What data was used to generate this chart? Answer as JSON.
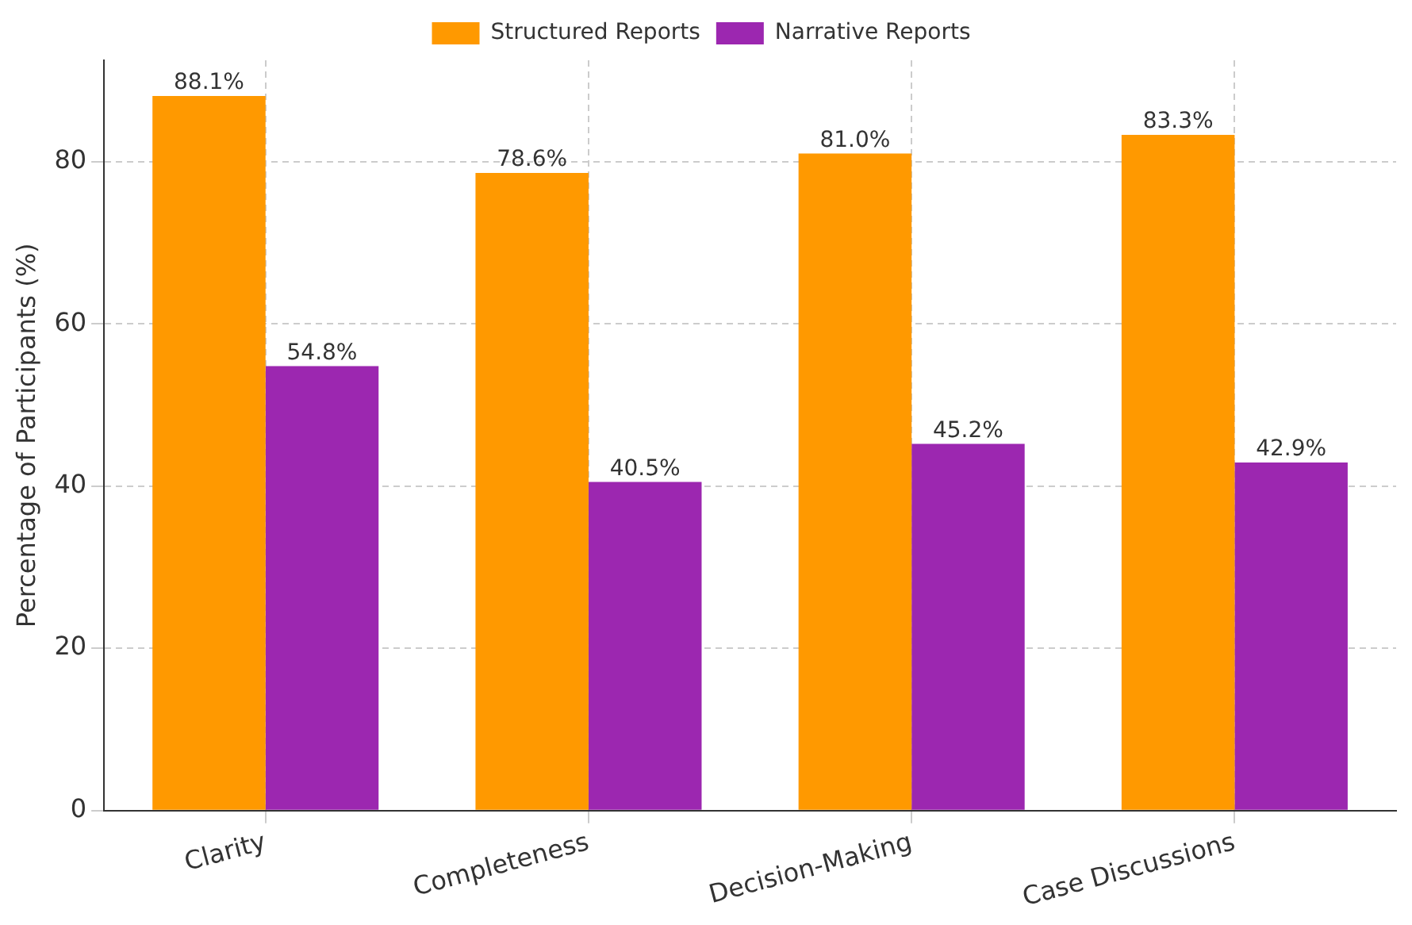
{
  "chart_data": {
    "type": "bar",
    "ylabel": "Percentage of Participants (%)",
    "categories": [
      "Clarity",
      "Completeness",
      "Decision-Making",
      "Case Discussions"
    ],
    "series": [
      {
        "name": "Structured Reports",
        "color": "#ff9900",
        "values": [
          88.1,
          78.6,
          81.0,
          83.3
        ],
        "value_labels": [
          "88.1%",
          "78.6%",
          "81.0%",
          "83.3%"
        ]
      },
      {
        "name": "Narrative Reports",
        "color": "#9c27b0",
        "values": [
          54.8,
          40.5,
          45.2,
          42.9
        ],
        "value_labels": [
          "54.8%",
          "40.5%",
          "45.2%",
          "42.9%"
        ]
      }
    ],
    "ylim": [
      0,
      92.5
    ],
    "yticks": [
      0,
      20,
      40,
      60,
      80
    ],
    "grid": true,
    "legend": "top"
  }
}
